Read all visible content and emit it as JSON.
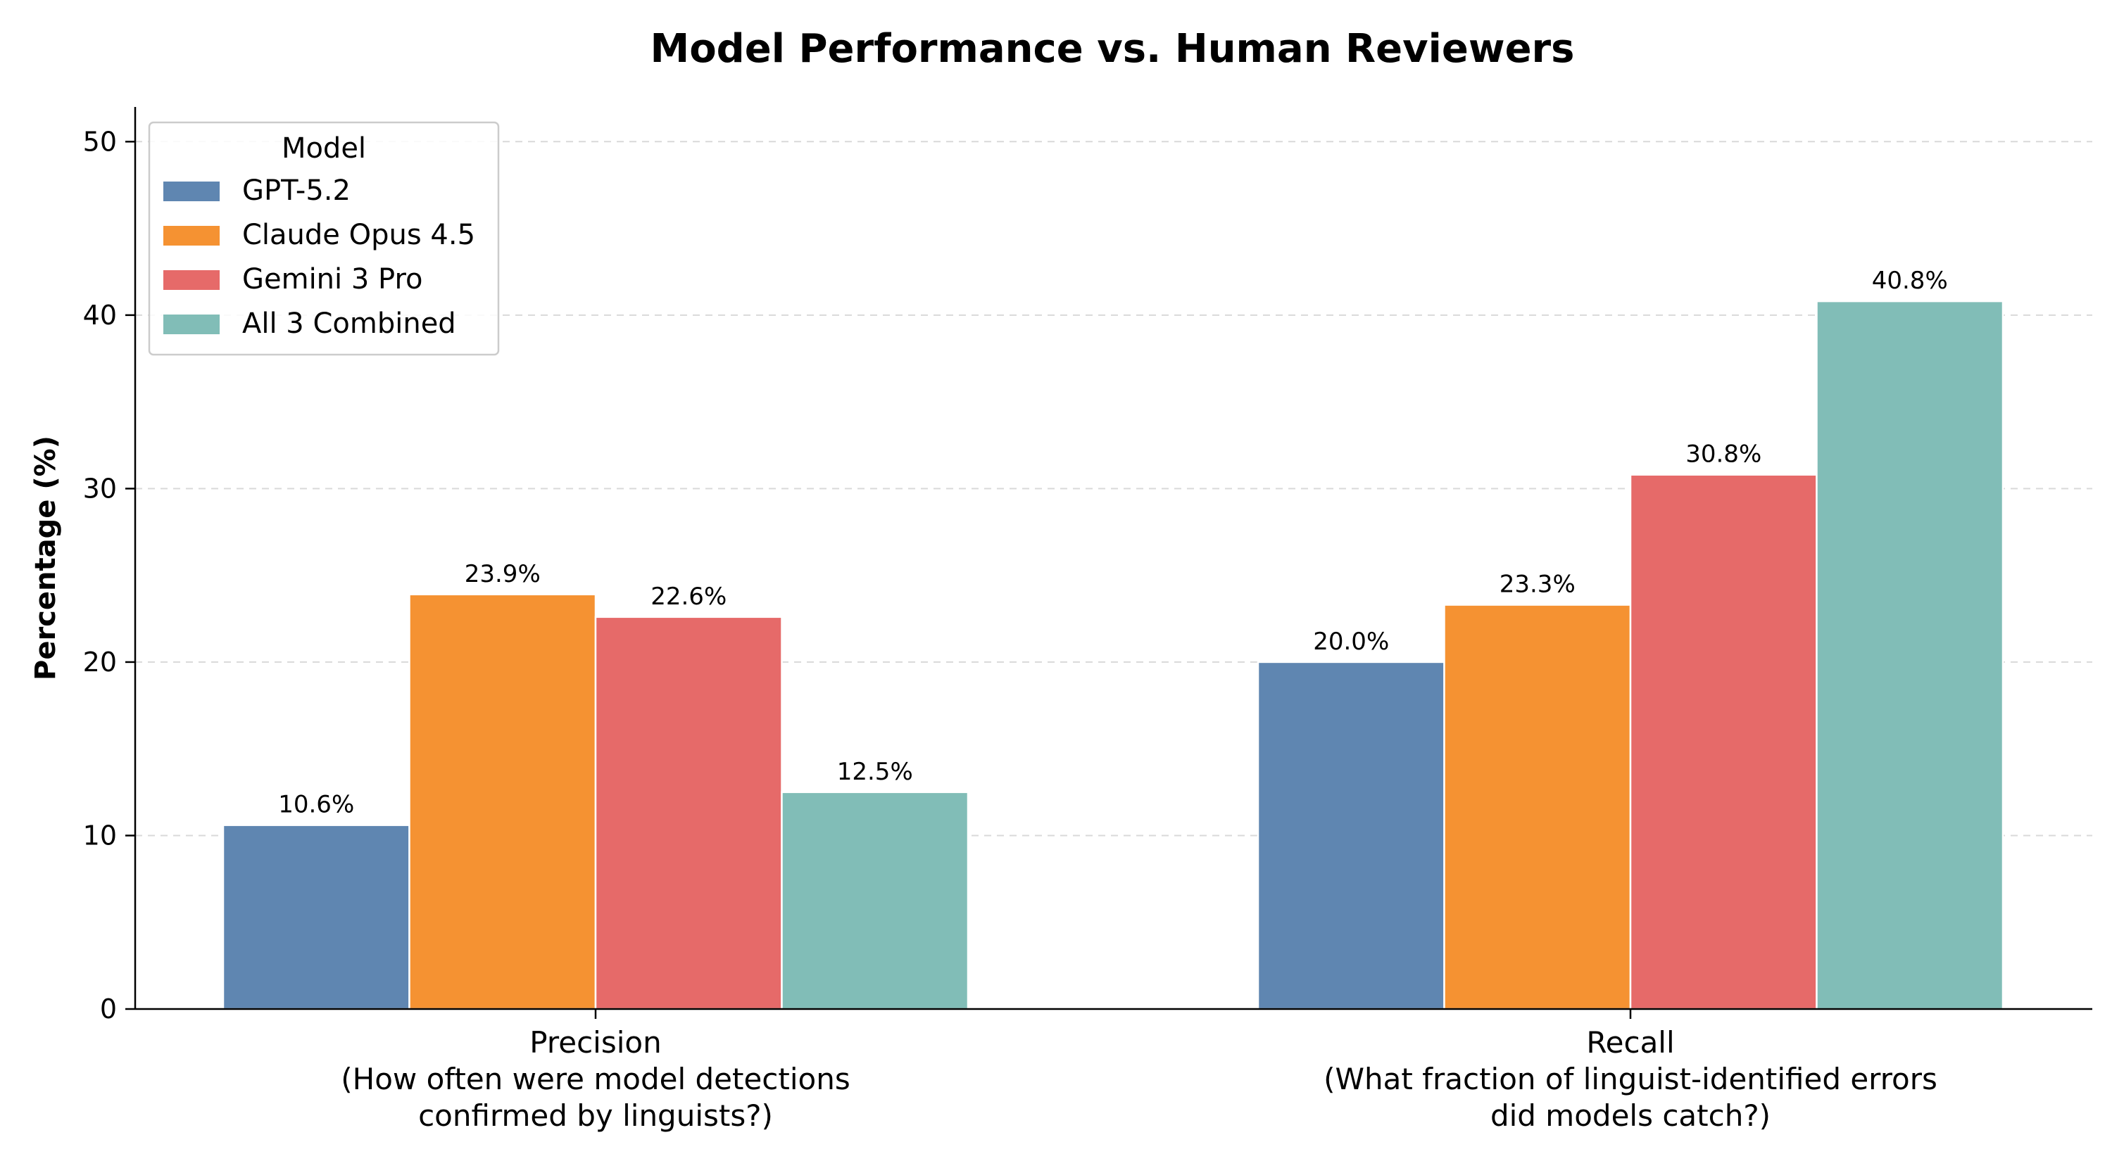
{
  "chart_data": {
    "type": "bar",
    "title": "Model Performance vs. Human Reviewers",
    "xlabel": "",
    "ylabel": "Percentage (%)",
    "ylim": [
      0,
      52
    ],
    "yticks": [
      0,
      10,
      20,
      30,
      40,
      50
    ],
    "grid": "y dashed",
    "legend": {
      "title": "Model",
      "placement": "top-left"
    },
    "categories": [
      [
        "Precision",
        "(How often were model detections",
        "confirmed by linguists?)"
      ],
      [
        "Recall",
        "(What fraction of linguist-identified errors",
        "did models catch?)"
      ]
    ],
    "series": [
      {
        "name": "GPT-5.2",
        "color": "#5f86b1",
        "values": [
          10.6,
          20.0
        ],
        "labels": [
          "10.6%",
          "20.0%"
        ]
      },
      {
        "name": "Claude Opus 4.5",
        "color": "#f59232",
        "values": [
          23.9,
          23.3
        ],
        "labels": [
          "23.9%",
          "23.3%"
        ]
      },
      {
        "name": "Gemini 3 Pro",
        "color": "#e66a69",
        "values": [
          22.6,
          30.8
        ],
        "labels": [
          "22.6%",
          "30.8%"
        ]
      },
      {
        "name": "All 3 Combined",
        "color": "#81bdb7",
        "values": [
          12.5,
          40.8
        ],
        "labels": [
          "12.5%",
          "40.8%"
        ]
      }
    ]
  }
}
